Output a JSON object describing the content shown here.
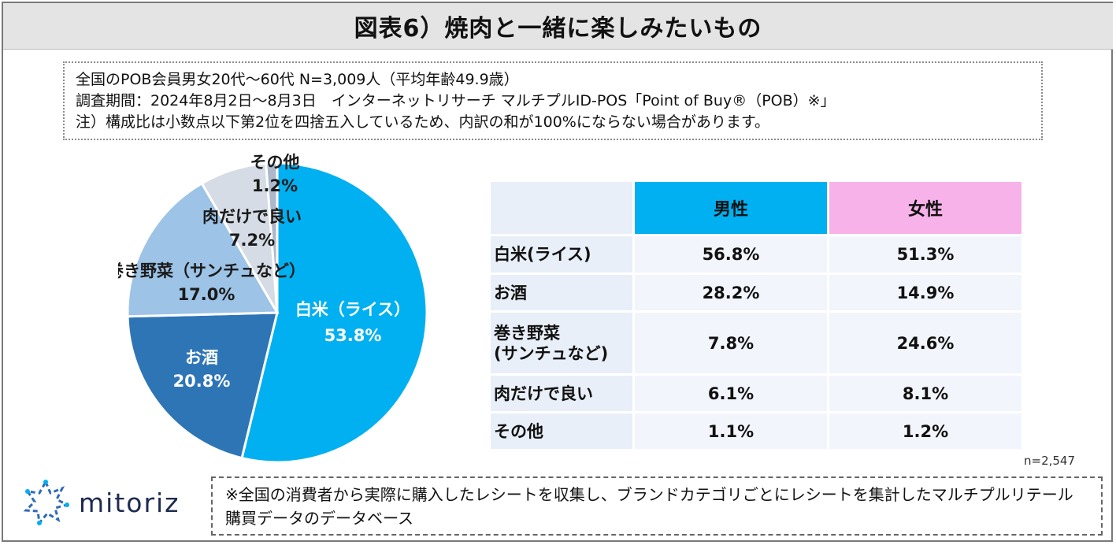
{
  "title": "図表6）焼肉と一緒に楽しみたいもの",
  "notes": [
    "全国のPOB会員男女20代～60代 N=3,009人（平均年齢49.9歳）",
    "調査期間：2024年8月2日～8月3日　インターネットリサーチ マルチプルID-POS「Point of Buy®（POB）※」",
    "注）構成比は小数点以下第2位を四捨五入しているため、内訳の和が100%にならない場合があります。"
  ],
  "colors": {
    "rice": "#00b0f0",
    "sake": "#2e75b6",
    "veg": "#9dc3e6",
    "meat": "#d6dce5",
    "other": "#adb9ca",
    "male": "#00b0f0",
    "female": "#f7b3e9"
  },
  "chart_data": [
    {
      "type": "pie",
      "slices": [
        {
          "label": "白米（ライス）",
          "value": 53.8,
          "value_label": "53.8%"
        },
        {
          "label": "お酒",
          "value": 20.8,
          "value_label": "20.8%"
        },
        {
          "label": "巻き野菜（サンチュなど）",
          "value": 17.0,
          "value_label": "17.0%"
        },
        {
          "label": "肉だけで良い",
          "value": 7.2,
          "value_label": "7.2%"
        },
        {
          "label": "その他",
          "value": 1.2,
          "value_label": "1.2%"
        }
      ]
    },
    {
      "type": "table",
      "headers": [
        "",
        "男性",
        "女性"
      ],
      "rows": [
        {
          "category": "白米(ライス)",
          "male": "56.8%",
          "female": "51.3%"
        },
        {
          "category": "お酒",
          "male": "28.2%",
          "female": "14.9%"
        },
        {
          "category": "巻き野菜 (サンチュなど)",
          "category_lines": [
            "巻き野菜",
            "(サンチュなど)"
          ],
          "male": "7.8%",
          "female": "24.6%"
        },
        {
          "category": "肉だけで良い",
          "male": "6.1%",
          "female": "8.1%"
        },
        {
          "category": "その他",
          "male": "1.1%",
          "female": "1.2%"
        }
      ]
    }
  ],
  "sample_note": "n=2,547",
  "logo_text": "mitoriz",
  "footer_note": "※全国の消費者から実際に購入したレシートを収集し、ブランドカテゴリごとにレシートを集計したマルチプルリテール購買データのデータベース"
}
